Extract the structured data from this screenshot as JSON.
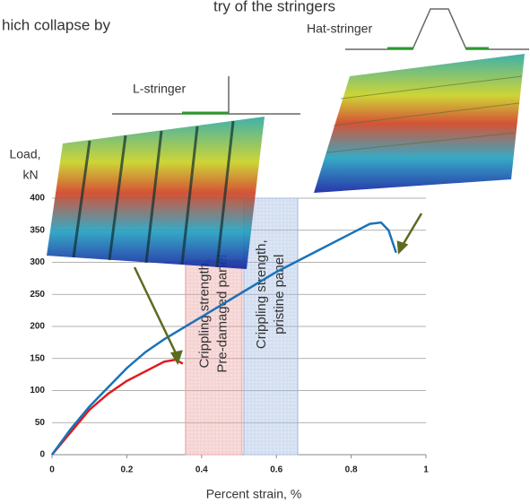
{
  "chart_data": {
    "type": "line",
    "header_lines": [
      "try of the stringers",
      "hich collapse by"
    ],
    "y_label_lines": [
      "Load,",
      "kN"
    ],
    "x_label": "Percent strain, %",
    "xlim": [
      0,
      1
    ],
    "xticks": [
      0,
      0.2,
      0.4,
      0.6,
      0.8,
      1
    ],
    "ylim": [
      0,
      400
    ],
    "yticks": [
      0,
      50,
      100,
      150,
      200,
      250,
      300,
      350,
      400
    ],
    "grid": true,
    "series": [
      {
        "color": "#e0191b",
        "x": [
          0,
          0.05,
          0.1,
          0.15,
          0.2,
          0.25,
          0.3,
          0.33,
          0.35
        ],
        "values": [
          0,
          35,
          70,
          95,
          115,
          130,
          145,
          148,
          142
        ]
      },
      {
        "color": "#1a72b8",
        "x": [
          0,
          0.05,
          0.1,
          0.15,
          0.2,
          0.25,
          0.3,
          0.4,
          0.5,
          0.6,
          0.7,
          0.8,
          0.85,
          0.88,
          0.9,
          0.92
        ],
        "values": [
          0,
          40,
          75,
          105,
          135,
          160,
          180,
          215,
          250,
          285,
          315,
          345,
          360,
          362,
          350,
          315
        ]
      }
    ],
    "bands": [
      {
        "label_lines": [
          "Crippling strength,",
          "Pre-damaged panel"
        ],
        "x": [
          0.357,
          0.508
        ],
        "top": 303,
        "color": "#e8a0a0"
      },
      {
        "label_lines": [
          "Crippling strength,",
          "pristine panel"
        ],
        "x": [
          0.513,
          0.657
        ],
        "top": 400,
        "color": "#9fb8e0"
      }
    ],
    "stringers": [
      {
        "label": "L-stringer"
      },
      {
        "label": "Hat-stringer"
      }
    ]
  }
}
